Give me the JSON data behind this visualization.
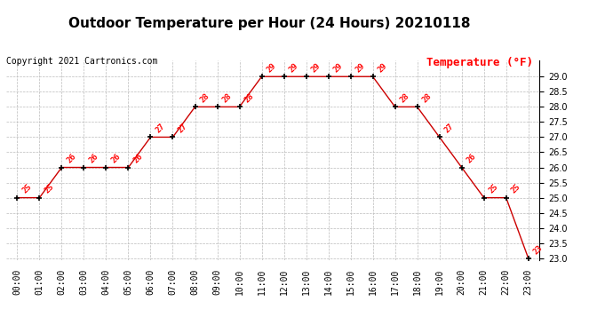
{
  "title": "Outdoor Temperature per Hour (24 Hours) 20210118",
  "copyright": "Copyright 2021 Cartronics.com",
  "legend_label": "Temperature (°F)",
  "hours": [
    0,
    1,
    2,
    3,
    4,
    5,
    6,
    7,
    8,
    9,
    10,
    11,
    12,
    13,
    14,
    15,
    16,
    17,
    18,
    19,
    20,
    21,
    22,
    23
  ],
  "temperatures": [
    25,
    25,
    26,
    26,
    26,
    26,
    27,
    27,
    28,
    28,
    28,
    29,
    29,
    29,
    29,
    29,
    29,
    28,
    28,
    27,
    26,
    25,
    25,
    23
  ],
  "ylim_min": 23.0,
  "ylim_max": 29.0,
  "line_color": "#cc0000",
  "marker_color": "black",
  "title_color": "black",
  "copyright_color": "black",
  "legend_color": "red",
  "annotation_color": "red",
  "grid_color": "#bbbbbb",
  "bg_color": "white",
  "title_fontsize": 11,
  "annotation_fontsize": 6.5,
  "copyright_fontsize": 7,
  "legend_fontsize": 9,
  "tick_fontsize": 7
}
